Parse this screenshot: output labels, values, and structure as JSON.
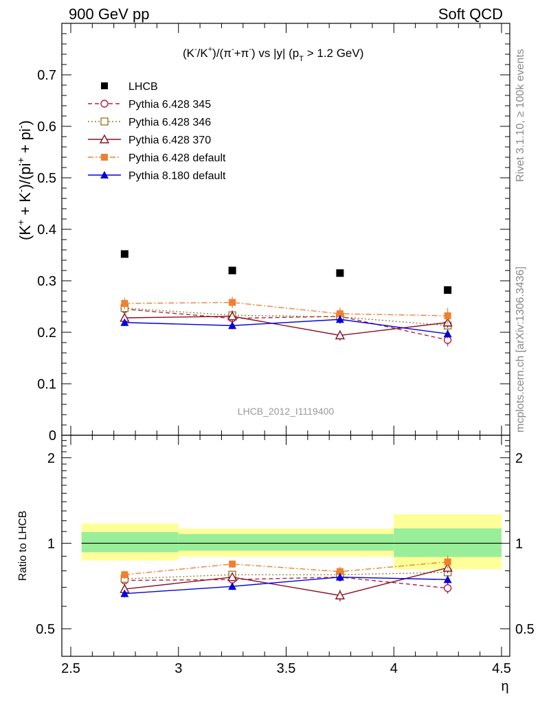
{
  "header": {
    "left": "900 GeV pp",
    "right": "Soft QCD"
  },
  "side_text": {
    "rivet": "Rivet 3.1.10, ≥ 100k events",
    "mcplots": "mcplots.cern.ch [arXiv:1306.3436]"
  },
  "chart_data": [
    {
      "type": "scatter",
      "title": "(K⁻/K⁺)/(π⁻+π⁻) vs |y| (p_T > 1.2 GeV)",
      "title_parts": {
        "main": "(K",
        "k1": "-",
        "mid1": "/K",
        "k2": "+",
        "mid2": ")/(π",
        "p1": "-",
        "mid3": "+π",
        "p2": "-",
        "mid4": ") vs |y| (p",
        "sub": "T",
        "end": " > 1.2 GeV)"
      },
      "ylabel": "(K⁺ + K⁻)/(pi⁺ + pi⁻)",
      "ylabel_parts": {
        "a": "(K",
        "s1": "+",
        "b": " + K",
        "s2": "-",
        "c": ")/(pi",
        "s3": "+",
        "d": " + pi",
        "s4": "-",
        "e": ")"
      },
      "watermark": "LHCB_2012_I1119400",
      "xlim": [
        2.5,
        4.5
      ],
      "ylim": [
        0,
        0.8
      ],
      "yticks": [
        "0",
        "0.1",
        "0.2",
        "0.3",
        "0.4",
        "0.5",
        "0.6",
        "0.7"
      ],
      "legend_position": "top-left",
      "x": [
        2.75,
        3.25,
        3.75,
        4.25
      ],
      "series": [
        {
          "name": "LHCB",
          "color": "#000000",
          "marker": "square-filled",
          "line": "none",
          "values": [
            0.352,
            0.32,
            0.315,
            0.282
          ],
          "errors": [
            0,
            0,
            0,
            0
          ]
        },
        {
          "name": "Pythia 6.428 345",
          "color": "#b02040",
          "marker": "circle-open",
          "line": "dashed",
          "values": [
            0.245,
            0.227,
            0.231,
            0.185
          ],
          "errors": [
            0.01,
            0.01,
            0.01,
            0.012
          ]
        },
        {
          "name": "Pythia 6.428 346",
          "color": "#9c7a2c",
          "marker": "square-open",
          "line": "dotted",
          "values": [
            0.247,
            0.233,
            0.23,
            0.213
          ],
          "errors": [
            0.01,
            0.01,
            0.01,
            0.01
          ]
        },
        {
          "name": "Pythia 6.428 370",
          "color": "#8b1020",
          "marker": "triangle-open",
          "line": "solid",
          "values": [
            0.228,
            0.231,
            0.194,
            0.219
          ],
          "errors": [
            0.01,
            0.01,
            0.01,
            0.01
          ]
        },
        {
          "name": "Pythia 6.428 default",
          "color": "#f08030",
          "marker": "square-filled",
          "line": "dashdot",
          "values": [
            0.256,
            0.258,
            0.236,
            0.232
          ],
          "errors": [
            0.011,
            0.011,
            0.012,
            0.015
          ]
        },
        {
          "name": "Pythia 8.180 default",
          "color": "#0000dd",
          "marker": "triangle-filled",
          "line": "solid",
          "values": [
            0.219,
            0.213,
            0.225,
            0.197
          ],
          "errors": [
            0.007,
            0.007,
            0.008,
            0.008
          ]
        }
      ]
    },
    {
      "type": "scatter",
      "ylabel": "Ratio to LHCB",
      "xlabel": "η",
      "xlim": [
        2.5,
        4.5
      ],
      "ylim": [
        0.4,
        2.4
      ],
      "log_scale_y": true,
      "yticks": [
        "0.5",
        "1",
        "2"
      ],
      "xticks": [
        "2.5",
        "3",
        "3.5",
        "4",
        "4.5"
      ],
      "bins": [
        [
          2.55,
          3.0
        ],
        [
          3.0,
          4.0
        ],
        [
          4.0,
          4.5
        ]
      ],
      "bands": [
        {
          "x": [
            2.55,
            3.0
          ],
          "inner": [
            0.93,
            1.095
          ],
          "outer": [
            0.87,
            1.175
          ]
        },
        {
          "x": [
            3.0,
            4.0
          ],
          "inner": [
            0.942,
            1.078
          ],
          "outer": [
            0.898,
            1.125
          ]
        },
        {
          "x": [
            4.0,
            4.5
          ],
          "inner": [
            0.895,
            1.128
          ],
          "outer": [
            0.81,
            1.265
          ]
        }
      ],
      "x": [
        2.75,
        3.25,
        3.75,
        4.25
      ],
      "series": [
        {
          "name": "Pythia 6.428 345",
          "values": [
            0.74,
            0.745,
            0.76,
            0.695
          ],
          "errors": [
            0.025,
            0.025,
            0.025,
            0.03
          ]
        },
        {
          "name": "Pythia 6.428 346",
          "values": [
            0.75,
            0.775,
            0.775,
            0.79
          ],
          "errors": [
            0.025,
            0.025,
            0.025,
            0.03
          ]
        },
        {
          "name": "Pythia 6.428 370",
          "values": [
            0.69,
            0.76,
            0.655,
            0.82
          ],
          "errors": [
            0.025,
            0.025,
            0.03,
            0.035
          ]
        },
        {
          "name": "Pythia 6.428 default",
          "values": [
            0.775,
            0.845,
            0.795,
            0.86
          ],
          "errors": [
            0.025,
            0.025,
            0.03,
            0.045
          ]
        },
        {
          "name": "Pythia 8.180 default",
          "values": [
            0.665,
            0.705,
            0.76,
            0.745
          ],
          "errors": [
            0.02,
            0.02,
            0.025,
            0.025
          ]
        }
      ]
    }
  ],
  "colors": {
    "band_inner": "#99ee99",
    "band_outer": "#ffff99"
  }
}
